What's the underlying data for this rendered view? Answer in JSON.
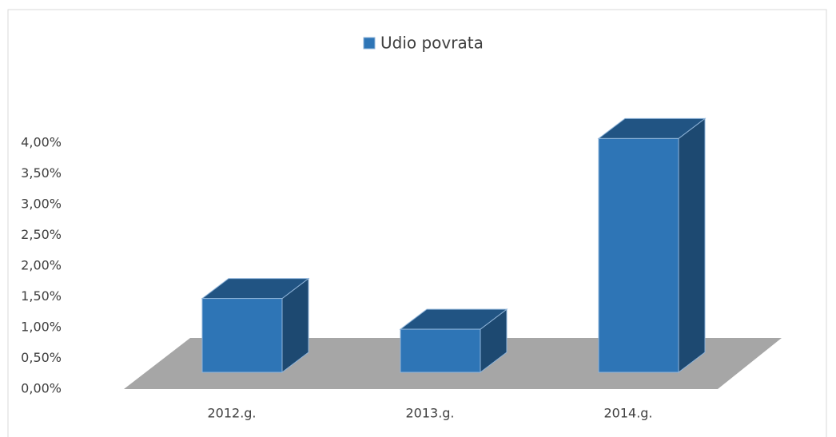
{
  "chart_data": {
    "type": "bar3d",
    "categories": [
      "2012.g.",
      "2013.g.",
      "2014.g."
    ],
    "series": [
      {
        "name": "Udio povrata",
        "color": "#2e75b6",
        "values": [
          1.2,
          0.7,
          3.8
        ]
      }
    ],
    "ylim": [
      0,
      4
    ],
    "yticks": [
      {
        "value": 0,
        "label": "0,00%"
      },
      {
        "value": 0.5,
        "label": "0,50%"
      },
      {
        "value": 1,
        "label": "1,00%"
      },
      {
        "value": 1.5,
        "label": "1,50%"
      },
      {
        "value": 2,
        "label": "2,00%"
      },
      {
        "value": 2.5,
        "label": "2,50%"
      },
      {
        "value": 3,
        "label": "3,00%"
      },
      {
        "value": 3.5,
        "label": "3,50%"
      },
      {
        "value": 4,
        "label": "4,00%"
      }
    ],
    "legend": "top",
    "grid": false
  }
}
